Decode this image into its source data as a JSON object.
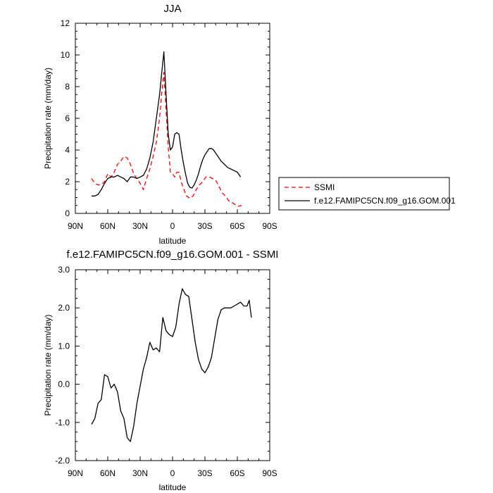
{
  "chart_data": [
    {
      "type": "line",
      "title": "JJA",
      "xlabel": "latitude",
      "ylabel": "Precipitation rate (mm/day)",
      "xlim": [
        -90,
        90
      ],
      "ylim": [
        0,
        12
      ],
      "x_ticks": [
        -90,
        -60,
        -30,
        0,
        30,
        60,
        90
      ],
      "x_tick_labels": [
        "90N",
        "60N",
        "30N",
        "0",
        "30S",
        "60S",
        "90S"
      ],
      "y_ticks": [
        0,
        2,
        4,
        6,
        8,
        10,
        12
      ],
      "y_tick_labels": [
        "0",
        "2",
        "4",
        "6",
        "8",
        "10",
        "12"
      ],
      "grid": false,
      "legend_position": "right",
      "series": [
        {
          "name": "SSMI",
          "color": "#ff0000",
          "dash": "dashed",
          "points": [
            [
              -75,
              2.2
            ],
            [
              -72,
              1.9
            ],
            [
              -69,
              1.8
            ],
            [
              -66,
              1.8
            ],
            [
              -63,
              2.0
            ],
            [
              -60,
              2.5
            ],
            [
              -57,
              2.3
            ],
            [
              -54,
              2.6
            ],
            [
              -51,
              3.1
            ],
            [
              -48,
              3.3
            ],
            [
              -45,
              3.6
            ],
            [
              -42,
              3.5
            ],
            [
              -39,
              3.1
            ],
            [
              -36,
              2.5
            ],
            [
              -33,
              2.2
            ],
            [
              -30,
              1.9
            ],
            [
              -27,
              1.5
            ],
            [
              -24,
              2.2
            ],
            [
              -21,
              2.8
            ],
            [
              -18,
              3.6
            ],
            [
              -15,
              4.5
            ],
            [
              -12,
              6.0
            ],
            [
              -10,
              7.6
            ],
            [
              -8,
              8.9
            ],
            [
              -6,
              6.5
            ],
            [
              -4,
              4.2
            ],
            [
              -2,
              2.6
            ],
            [
              0,
              2.5
            ],
            [
              2,
              2.3
            ],
            [
              4,
              2.6
            ],
            [
              6,
              2.6
            ],
            [
              8,
              2.0
            ],
            [
              10,
              1.6
            ],
            [
              13,
              1.1
            ],
            [
              16,
              0.95
            ],
            [
              19,
              1.1
            ],
            [
              22,
              1.5
            ],
            [
              25,
              1.8
            ],
            [
              28,
              2.0
            ],
            [
              31,
              2.3
            ],
            [
              34,
              2.3
            ],
            [
              37,
              2.2
            ],
            [
              40,
              2.1
            ],
            [
              43,
              1.7
            ],
            [
              46,
              1.3
            ],
            [
              49,
              1.1
            ],
            [
              52,
              0.8
            ],
            [
              55,
              0.7
            ],
            [
              58,
              0.55
            ],
            [
              61,
              0.45
            ],
            [
              64,
              0.5
            ]
          ]
        },
        {
          "name": "f.e12.FAMIPC5CN.f09_g16.GOM.001",
          "color": "#000000",
          "dash": "solid",
          "points": [
            [
              -75,
              1.1
            ],
            [
              -72,
              1.1
            ],
            [
              -69,
              1.2
            ],
            [
              -66,
              1.5
            ],
            [
              -63,
              1.9
            ],
            [
              -60,
              2.2
            ],
            [
              -57,
              2.3
            ],
            [
              -54,
              2.3
            ],
            [
              -51,
              2.4
            ],
            [
              -48,
              2.3
            ],
            [
              -45,
              2.2
            ],
            [
              -42,
              2.0
            ],
            [
              -39,
              2.3
            ],
            [
              -36,
              2.3
            ],
            [
              -33,
              2.2
            ],
            [
              -30,
              2.3
            ],
            [
              -27,
              2.4
            ],
            [
              -24,
              2.8
            ],
            [
              -21,
              3.5
            ],
            [
              -18,
              4.5
            ],
            [
              -15,
              6.0
            ],
            [
              -12,
              7.5
            ],
            [
              -10,
              8.9
            ],
            [
              -8,
              10.2
            ],
            [
              -6,
              7.5
            ],
            [
              -4,
              5.0
            ],
            [
              -2,
              4.0
            ],
            [
              0,
              4.2
            ],
            [
              2,
              5.0
            ],
            [
              4,
              5.1
            ],
            [
              6,
              5.0
            ],
            [
              8,
              4.0
            ],
            [
              10,
              3.2
            ],
            [
              12,
              2.5
            ],
            [
              14,
              1.9
            ],
            [
              16,
              1.65
            ],
            [
              18,
              1.6
            ],
            [
              20,
              1.8
            ],
            [
              22,
              2.1
            ],
            [
              24,
              2.5
            ],
            [
              26,
              3.0
            ],
            [
              28,
              3.4
            ],
            [
              30,
              3.7
            ],
            [
              32,
              3.9
            ],
            [
              34,
              4.1
            ],
            [
              36,
              4.1
            ],
            [
              38,
              4.0
            ],
            [
              40,
              3.8
            ],
            [
              42,
              3.6
            ],
            [
              45,
              3.3
            ],
            [
              48,
              3.1
            ],
            [
              51,
              2.9
            ],
            [
              54,
              2.8
            ],
            [
              57,
              2.7
            ],
            [
              60,
              2.6
            ],
            [
              63,
              2.3
            ]
          ]
        }
      ]
    },
    {
      "type": "line",
      "title": "f.e12.FAMIPC5CN.f09_g16.GOM.001 - SSMI",
      "xlabel": "latitude",
      "ylabel": "Precipitation rate (mm/day)",
      "xlim": [
        -90,
        90
      ],
      "ylim": [
        -2,
        3
      ],
      "x_ticks": [
        -90,
        -60,
        -30,
        0,
        30,
        60,
        90
      ],
      "x_tick_labels": [
        "90N",
        "60N",
        "30N",
        "0",
        "30S",
        "60S",
        "90S"
      ],
      "y_ticks": [
        -2,
        -1,
        0,
        1,
        2,
        3
      ],
      "y_tick_labels": [
        "-2.0",
        "-1.0",
        "0.0",
        "1.0",
        "2.0",
        "3.0"
      ],
      "grid": false,
      "series": [
        {
          "color": "#000000",
          "dash": "solid",
          "points": [
            [
              -75,
              -1.05
            ],
            [
              -72,
              -0.9
            ],
            [
              -69,
              -0.5
            ],
            [
              -66,
              -0.4
            ],
            [
              -63,
              0.25
            ],
            [
              -60,
              0.2
            ],
            [
              -57,
              -0.1
            ],
            [
              -54,
              0.0
            ],
            [
              -51,
              -0.2
            ],
            [
              -48,
              -0.7
            ],
            [
              -45,
              -0.9
            ],
            [
              -42,
              -1.4
            ],
            [
              -39,
              -1.5
            ],
            [
              -36,
              -1.1
            ],
            [
              -33,
              -0.5
            ],
            [
              -30,
              -0.05
            ],
            [
              -27,
              0.4
            ],
            [
              -24,
              0.7
            ],
            [
              -21,
              1.1
            ],
            [
              -18,
              0.9
            ],
            [
              -15,
              0.95
            ],
            [
              -12,
              0.85
            ],
            [
              -9,
              1.75
            ],
            [
              -6,
              1.4
            ],
            [
              -3,
              1.3
            ],
            [
              0,
              1.25
            ],
            [
              3,
              1.5
            ],
            [
              6,
              2.1
            ],
            [
              9,
              2.5
            ],
            [
              12,
              2.35
            ],
            [
              15,
              2.3
            ],
            [
              18,
              1.7
            ],
            [
              21,
              1.1
            ],
            [
              24,
              0.65
            ],
            [
              27,
              0.4
            ],
            [
              30,
              0.3
            ],
            [
              33,
              0.45
            ],
            [
              36,
              0.7
            ],
            [
              39,
              1.2
            ],
            [
              42,
              1.7
            ],
            [
              45,
              1.95
            ],
            [
              48,
              2.0
            ],
            [
              51,
              2.0
            ],
            [
              54,
              2.0
            ],
            [
              57,
              2.05
            ],
            [
              60,
              2.1
            ],
            [
              63,
              2.15
            ],
            [
              66,
              2.05
            ],
            [
              69,
              2.05
            ],
            [
              71,
              2.2
            ],
            [
              73,
              1.75
            ]
          ]
        }
      ]
    }
  ]
}
